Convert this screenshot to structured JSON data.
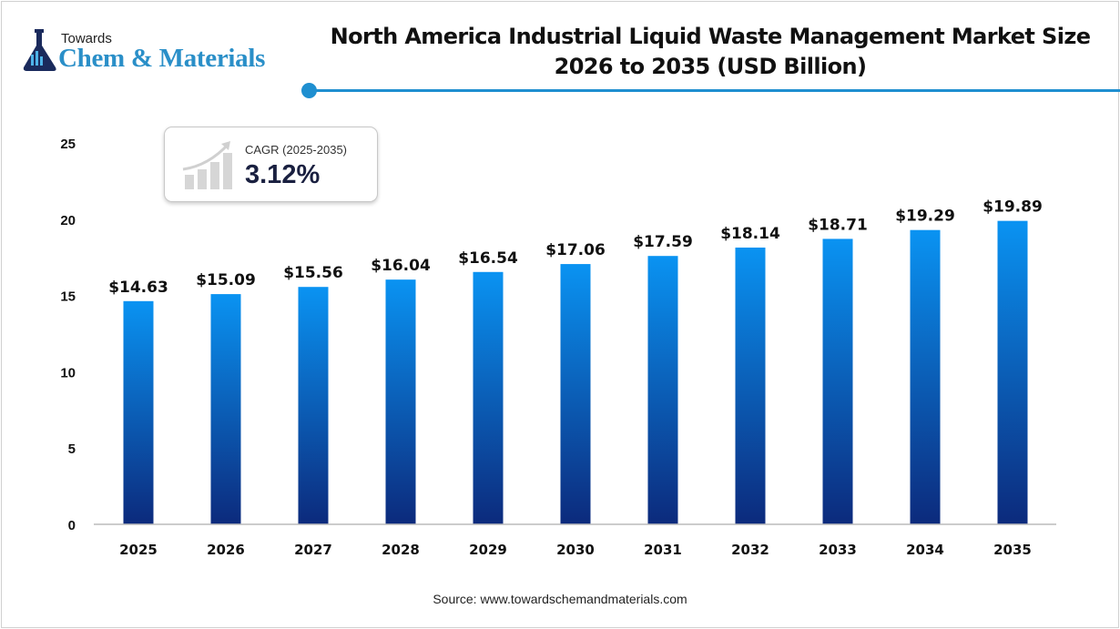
{
  "logo": {
    "towards": "Towards",
    "main": "Chem & Materials"
  },
  "cagr": {
    "label": "CAGR (2025-2035)",
    "value": "3.12%"
  },
  "source": "Source: www.towardschemandmaterials.com",
  "colors": {
    "bar_top": "#0a93f2",
    "bar_bottom": "#0c2a7c",
    "accent": "#1f8fd0"
  },
  "chart_data": {
    "type": "bar",
    "title": "North America Industrial Liquid Waste Management Market Size 2026 to 2035 (USD Billion)",
    "categories": [
      "2025",
      "2026",
      "2027",
      "2028",
      "2029",
      "2030",
      "2031",
      "2032",
      "2033",
      "2034",
      "2035"
    ],
    "values": [
      14.63,
      15.09,
      15.56,
      16.04,
      16.54,
      17.06,
      17.59,
      18.14,
      18.71,
      19.29,
      19.89
    ],
    "data_labels": [
      "$14.63",
      "$15.09",
      "$15.56",
      "$16.04",
      "$16.54",
      "$17.06",
      "$17.59",
      "$18.14",
      "$18.71",
      "$19.29",
      "$19.89"
    ],
    "yticks": [
      0,
      5,
      10,
      15,
      20,
      25
    ],
    "ylim": [
      0,
      25
    ],
    "xlabel": "",
    "ylabel": "",
    "grid": false
  }
}
